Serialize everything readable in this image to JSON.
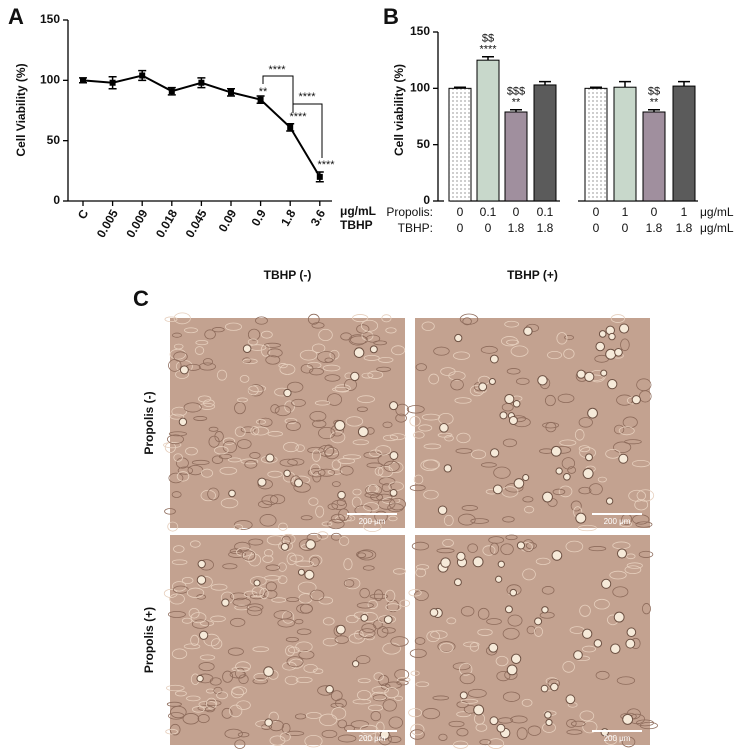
{
  "chart_data": [
    {
      "type": "line",
      "panel_label": "A",
      "ylabel": "Cell Viability (%)",
      "categories": [
        "C",
        "0.005",
        "0.009",
        "0.018",
        "0.045",
        "0.09",
        "0.9",
        "1.8",
        "3.6"
      ],
      "values": [
        100,
        98,
        104,
        91,
        98,
        90,
        84,
        61,
        20
      ],
      "errors": [
        2,
        5,
        4,
        3,
        4,
        3,
        3,
        3,
        4
      ],
      "color": "#000000",
      "ylim": [
        0,
        150
      ],
      "yticks": [
        0,
        50,
        100,
        150
      ],
      "xlabel": [
        "μg/mL",
        "TBHP"
      ],
      "annotations": [
        "**",
        "****",
        "****",
        "****",
        "****"
      ]
    },
    {
      "type": "bar",
      "panel_label": "B",
      "ylabel": "Cell viability (%)",
      "values": [
        100,
        125,
        79,
        103,
        100,
        101,
        79,
        102
      ],
      "errors": [
        1,
        3,
        2,
        3,
        1,
        5,
        2,
        4
      ],
      "colors": [
        "#ffffff",
        "#c8d8cb",
        "#a08f9e",
        "#5b5b5b",
        "#ffffff",
        "#c8d8cb",
        "#a08f9e",
        "#5b5b5b"
      ],
      "patterns": [
        "dots",
        null,
        null,
        null,
        "dots",
        null,
        null,
        null
      ],
      "ylim": [
        0,
        150
      ],
      "yticks": [
        0,
        50,
        100,
        150
      ],
      "annotations_top": [
        null,
        "$$",
        "$$$",
        null,
        null,
        null,
        "$$",
        null
      ],
      "annotations_bottom": [
        null,
        "****",
        "**",
        null,
        null,
        null,
        "**",
        null
      ],
      "rows": [
        {
          "label": "Propolis:",
          "cells": [
            "0",
            "0.1",
            "0",
            "0.1",
            "0",
            "1",
            "0",
            "1"
          ],
          "unit": "μg/mL"
        },
        {
          "label": "TBHP:",
          "cells": [
            "0",
            "0",
            "1.8",
            "1.8",
            "0",
            "0",
            "1.8",
            "1.8"
          ],
          "unit": "μg/mL"
        }
      ]
    }
  ],
  "panel_c": {
    "panel_label": "C",
    "columns": [
      "TBHP (-)",
      "TBHP (+)"
    ],
    "rows": [
      "Propolis (-)",
      "Propolis (+)"
    ],
    "scale_bar": "200 μm"
  }
}
